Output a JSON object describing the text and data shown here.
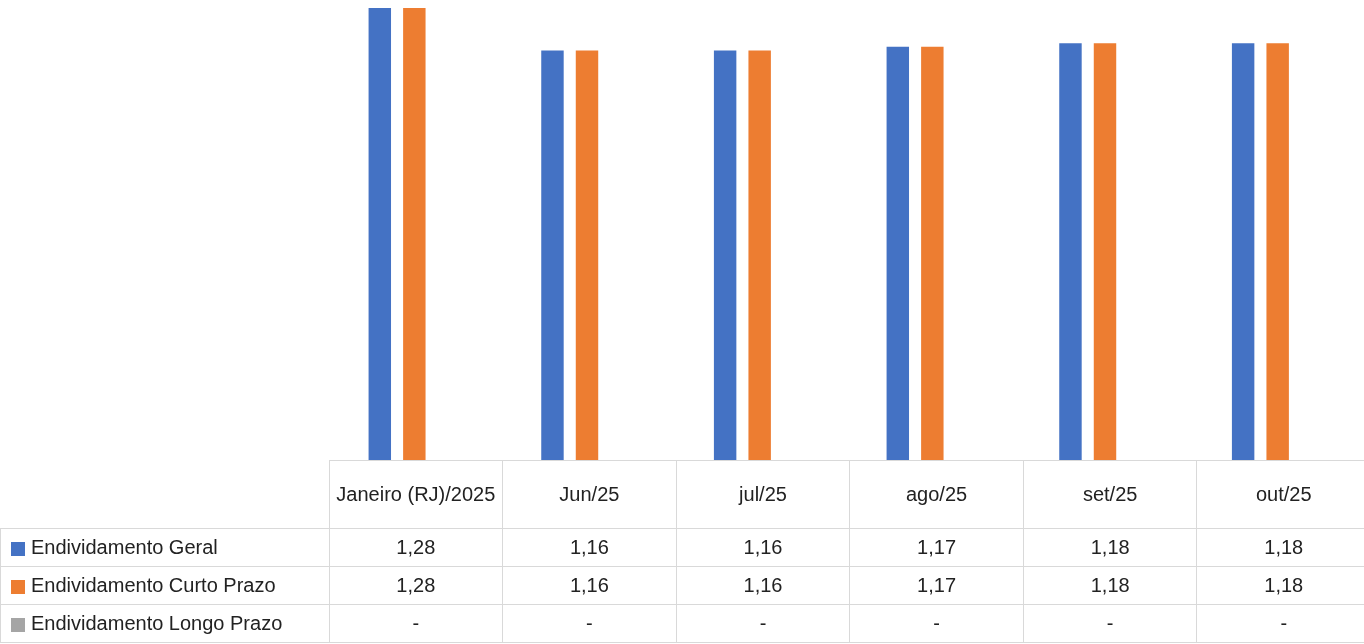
{
  "chart_data": {
    "type": "bar",
    "categories": [
      "Janeiro (RJ)/2025",
      "Jun/25",
      "jul/25",
      "ago/25",
      "set/25",
      "out/25"
    ],
    "series": [
      {
        "name": "Endividamento Geral",
        "color": "#4472c4",
        "values": [
          1.28,
          1.16,
          1.16,
          1.17,
          1.18,
          1.18
        ],
        "value_labels": [
          "1,28",
          "1,16",
          "1,16",
          "1,17",
          "1,18",
          "1,18"
        ]
      },
      {
        "name": "Endividamento Curto Prazo",
        "color": "#ed7d31",
        "values": [
          1.28,
          1.16,
          1.16,
          1.17,
          1.18,
          1.18
        ],
        "value_labels": [
          "1,28",
          "1,16",
          "1,16",
          "1,17",
          "1,18",
          "1,18"
        ]
      },
      {
        "name": "Endividamento Longo Prazo",
        "color": "#a5a5a5",
        "values": [
          null,
          null,
          null,
          null,
          null,
          null
        ],
        "value_labels": [
          "-",
          "-",
          "-",
          "-",
          "-",
          "-"
        ]
      }
    ],
    "legend": "bottom"
  }
}
